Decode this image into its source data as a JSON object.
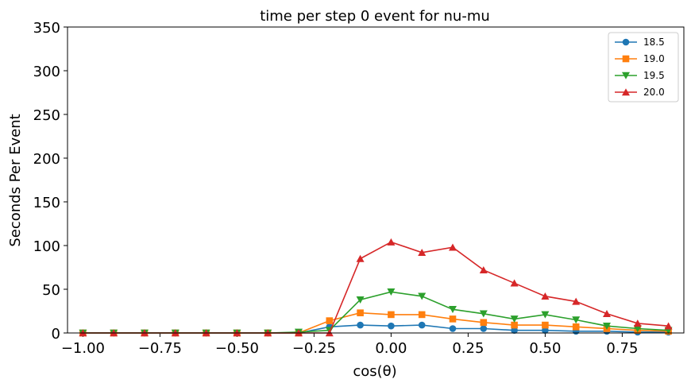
{
  "chart_data": {
    "type": "line",
    "title": "time per step 0 event for nu-mu",
    "xlabel": "cos(θ)",
    "ylabel": "Seconds Per Event",
    "xlim": [
      -1.05,
      0.95
    ],
    "ylim": [
      0,
      350
    ],
    "xticks": [
      -1.0,
      -0.75,
      -0.5,
      -0.25,
      0.0,
      0.25,
      0.5,
      0.75
    ],
    "xtick_labels": [
      "−1.00",
      "−0.75",
      "−0.50",
      "−0.25",
      "0.00",
      "0.25",
      "0.50",
      "0.75"
    ],
    "yticks": [
      0,
      50,
      100,
      150,
      200,
      250,
      300,
      350
    ],
    "ytick_labels": [
      "0",
      "50",
      "100",
      "150",
      "200",
      "250",
      "300",
      "350"
    ],
    "grid": false,
    "legend_position": "top-right",
    "x": [
      -1.0,
      -0.9,
      -0.8,
      -0.7,
      -0.6,
      -0.5,
      -0.4,
      -0.3,
      -0.2,
      -0.1,
      0.0,
      0.1,
      0.2,
      0.3,
      0.4,
      0.5,
      0.6,
      0.7,
      0.8,
      0.9
    ],
    "series": [
      {
        "name": "18.5",
        "color": "#1f77b4",
        "marker": "circle",
        "values": [
          0,
          0,
          0,
          0,
          0,
          0,
          0,
          0,
          7,
          9,
          8,
          9,
          5,
          5,
          3,
          3,
          2,
          2,
          1,
          1
        ]
      },
      {
        "name": "19.0",
        "color": "#ff7f0e",
        "marker": "square",
        "values": [
          0,
          0,
          0,
          0,
          0,
          0,
          0,
          0,
          14,
          23,
          21,
          21,
          16,
          12,
          9,
          9,
          7,
          5,
          3,
          2
        ]
      },
      {
        "name": "19.5",
        "color": "#2ca02c",
        "marker": "triangle-down",
        "values": [
          0,
          0,
          0,
          0,
          0,
          0,
          0,
          1,
          3,
          38,
          47,
          42,
          27,
          22,
          16,
          21,
          15,
          8,
          5,
          3
        ]
      },
      {
        "name": "20.0",
        "color": "#d62728",
        "marker": "triangle-up",
        "values": [
          0,
          0,
          0,
          0,
          0,
          0,
          0,
          0,
          0,
          85,
          104,
          92,
          98,
          72,
          57,
          42,
          36,
          22,
          11,
          8
        ]
      }
    ]
  }
}
